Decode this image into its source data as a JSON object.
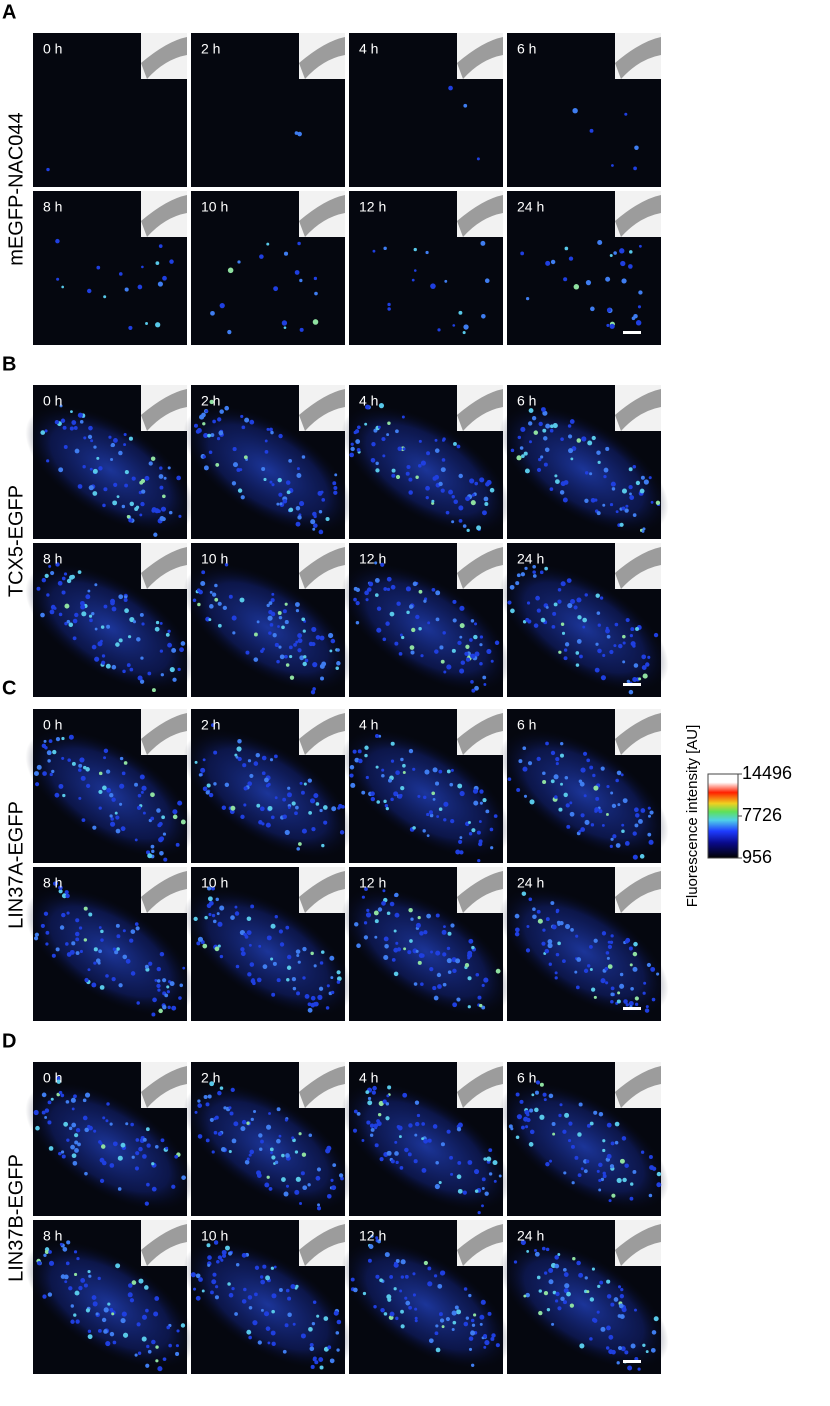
{
  "panels": [
    {
      "letter": "A",
      "label": "mEGFP-NAC044",
      "times": [
        "0 h",
        "2 h",
        "4 h",
        "6 h",
        "8 h",
        "10 h",
        "12 h",
        "24 h"
      ]
    },
    {
      "letter": "B",
      "label": "TCX5-EGFP",
      "times": [
        "0 h",
        "2 h",
        "4 h",
        "6 h",
        "8 h",
        "10 h",
        "12 h",
        "24 h"
      ]
    },
    {
      "letter": "C",
      "label": "LIN37A-EGFP",
      "times": [
        "0 h",
        "2 h",
        "4 h",
        "6 h",
        "8 h",
        "10 h",
        "12 h",
        "24 h"
      ]
    },
    {
      "letter": "D",
      "label": "LIN37B-EGFP",
      "times": [
        "0 h",
        "2 h",
        "4 h",
        "6 h",
        "8 h",
        "10 h",
        "12 h",
        "24 h"
      ]
    }
  ],
  "colorbar": {
    "title": "Fluorescence intensity [AU]",
    "ticks": [
      14496,
      7726,
      956
    ]
  }
}
